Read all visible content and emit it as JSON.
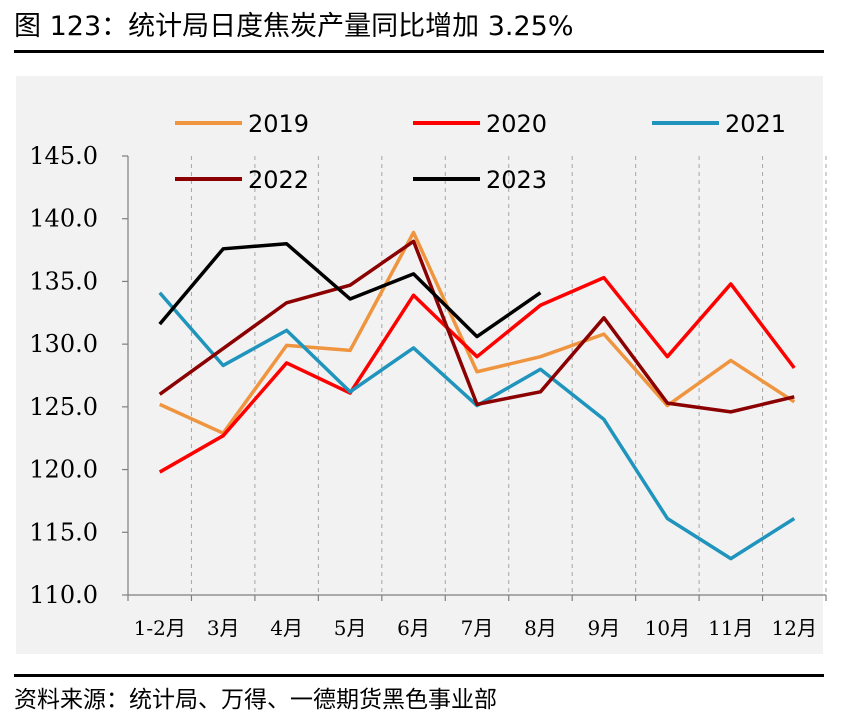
{
  "figure": {
    "title": "图 123：统计局日度焦炭产量同比增加 3.25%",
    "source": "资料来源：统计局、万得、一德期货黑色事业部"
  },
  "chart_data": {
    "type": "line",
    "title": "统计局日度焦炭产量同比增加 3.25%",
    "xlabel": "",
    "ylabel": "",
    "ylim": [
      110,
      145
    ],
    "ytick_step": 5,
    "ytick_labels": [
      "110.0",
      "115.0",
      "120.0",
      "125.0",
      "130.0",
      "135.0",
      "140.0",
      "145.0"
    ],
    "categories": [
      "1-2月",
      "3月",
      "4月",
      "5月",
      "6月",
      "7月",
      "8月",
      "9月",
      "10月",
      "11月",
      "12月"
    ],
    "series": [
      {
        "name": "2019",
        "color": "#f0953f",
        "values": [
          125.2,
          122.9,
          129.9,
          129.5,
          138.9,
          127.8,
          129.0,
          130.8,
          125.1,
          128.7,
          125.4
        ]
      },
      {
        "name": "2020",
        "color": "#ff0000",
        "values": [
          119.8,
          122.7,
          128.5,
          126.1,
          133.9,
          129.0,
          133.1,
          135.3,
          129.0,
          134.8,
          128.1
        ]
      },
      {
        "name": "2021",
        "color": "#1f94bc",
        "values": [
          134.1,
          128.3,
          131.1,
          126.2,
          129.7,
          125.1,
          128.0,
          124.0,
          116.1,
          112.9,
          116.1
        ]
      },
      {
        "name": "2022",
        "color": "#8b0000",
        "values": [
          126.0,
          null,
          133.3,
          134.7,
          138.2,
          125.2,
          126.2,
          132.1,
          125.3,
          124.6,
          125.8
        ]
      },
      {
        "name": "2023",
        "color": "#000000",
        "values": [
          131.6,
          137.6,
          138.0,
          133.6,
          135.6,
          130.6,
          134.1,
          null,
          null,
          null,
          null
        ]
      }
    ],
    "legend_position": "top"
  }
}
